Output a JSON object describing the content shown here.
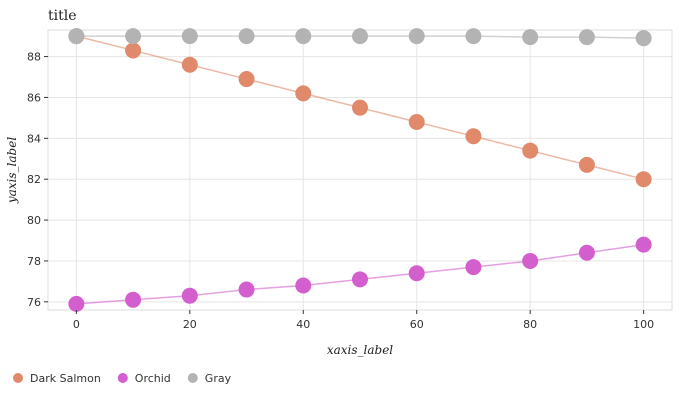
{
  "chart_data": {
    "type": "line",
    "title": "title",
    "xlabel": "xaxis_label",
    "ylabel": "yaxis_label",
    "xlim": [
      -5,
      105
    ],
    "ylim": [
      75.6,
      89.3
    ],
    "x_ticks": [
      0,
      20,
      40,
      60,
      80,
      100
    ],
    "y_ticks": [
      76,
      78,
      80,
      82,
      84,
      86,
      88
    ],
    "grid": true,
    "legend_position": "bottom-left",
    "x": [
      0,
      10,
      20,
      30,
      40,
      50,
      60,
      70,
      80,
      90,
      100
    ],
    "series": [
      {
        "name": "Dark Salmon",
        "color": "#e08a6b",
        "values": [
          89.0,
          88.3,
          87.6,
          86.9,
          86.2,
          85.5,
          84.8,
          84.1,
          83.4,
          82.7,
          82.0
        ]
      },
      {
        "name": "Orchid",
        "color": "#d35fcf",
        "values": [
          75.9,
          76.1,
          76.3,
          76.6,
          76.8,
          77.1,
          77.4,
          77.7,
          78.0,
          78.4,
          78.8
        ]
      },
      {
        "name": "Gray",
        "color": "#b3b3b3",
        "values": [
          89.0,
          89.0,
          89.0,
          89.0,
          89.0,
          89.0,
          89.0,
          89.0,
          88.95,
          88.95,
          88.9
        ]
      }
    ]
  }
}
